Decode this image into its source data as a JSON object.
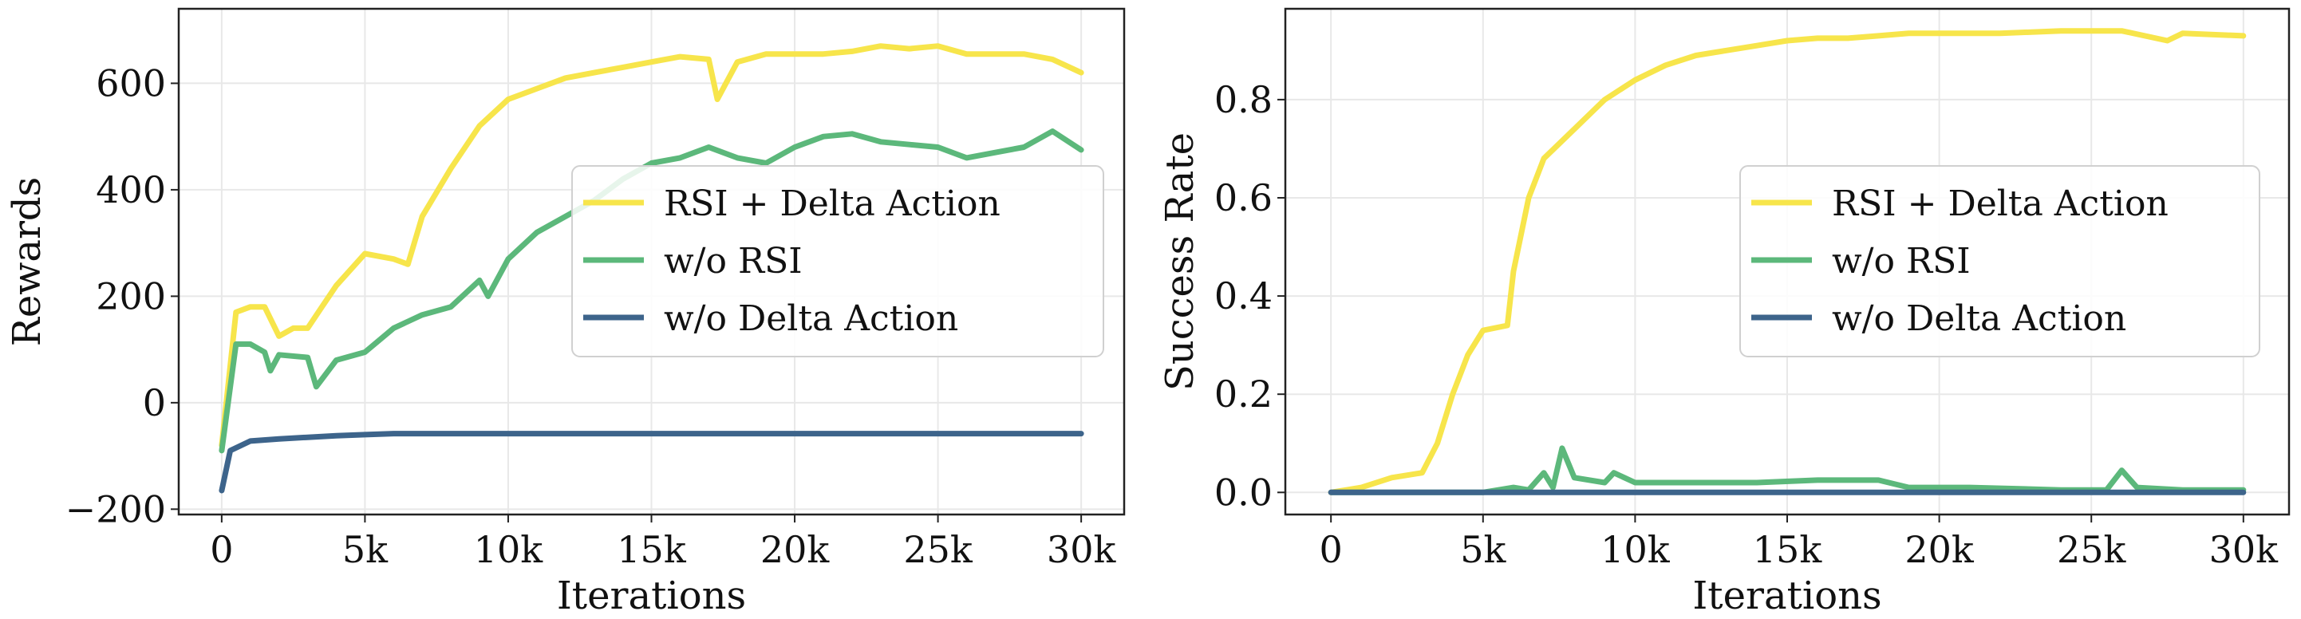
{
  "colors": {
    "rsi_delta": "#f7e54b",
    "wo_rsi": "#5cb87b",
    "wo_delta": "#3d648b"
  },
  "chart_data": [
    {
      "type": "line",
      "title": "",
      "xlabel": "Iterations",
      "ylabel": "Rewards",
      "xlim": [
        -1500,
        31500
      ],
      "ylim": [
        -210,
        740
      ],
      "xticks": [
        0,
        5000,
        10000,
        15000,
        20000,
        25000,
        30000
      ],
      "xtick_labels": [
        "0",
        "5k",
        "10k",
        "15k",
        "20k",
        "25k",
        "30k"
      ],
      "yticks": [
        -200,
        0,
        200,
        400,
        600
      ],
      "ytick_labels": [
        "−200",
        "0",
        "200",
        "400",
        "600"
      ],
      "grid": true,
      "legend_position": "center-right",
      "series": [
        {
          "name": "RSI + Delta Action",
          "color_key": "rsi_delta",
          "x": [
            0,
            500,
            1000,
            1500,
            2000,
            2500,
            3000,
            3500,
            4000,
            5000,
            6000,
            6500,
            7000,
            8000,
            9000,
            10000,
            11000,
            12000,
            13000,
            14000,
            15000,
            16000,
            17000,
            17300,
            18000,
            19000,
            20000,
            21000,
            22000,
            23000,
            24000,
            25000,
            26000,
            27000,
            28000,
            29000,
            30000
          ],
          "y": [
            -80,
            170,
            180,
            180,
            125,
            140,
            140,
            180,
            220,
            280,
            270,
            260,
            350,
            440,
            520,
            570,
            590,
            610,
            620,
            630,
            640,
            650,
            645,
            570,
            640,
            655,
            655,
            655,
            660,
            670,
            665,
            670,
            655,
            655,
            655,
            645,
            620
          ]
        },
        {
          "name": "w/o RSI",
          "color_key": "wo_rsi",
          "x": [
            0,
            500,
            1000,
            1500,
            1700,
            2000,
            3000,
            3300,
            4000,
            5000,
            6000,
            7000,
            8000,
            9000,
            9300,
            10000,
            11000,
            12000,
            13000,
            14000,
            15000,
            16000,
            17000,
            18000,
            19000,
            20000,
            21000,
            22000,
            23000,
            24000,
            25000,
            26000,
            27000,
            28000,
            29000,
            30000
          ],
          "y": [
            -90,
            110,
            110,
            95,
            60,
            90,
            85,
            30,
            80,
            95,
            140,
            165,
            180,
            230,
            200,
            270,
            320,
            350,
            380,
            420,
            450,
            460,
            480,
            460,
            450,
            480,
            500,
            505,
            490,
            485,
            480,
            460,
            470,
            480,
            510,
            475
          ]
        },
        {
          "name": "w/o Delta Action",
          "color_key": "wo_delta",
          "x": [
            0,
            300,
            1000,
            2000,
            3000,
            4000,
            5000,
            6000,
            10000,
            20000,
            30000
          ],
          "y": [
            -165,
            -90,
            -72,
            -68,
            -65,
            -62,
            -60,
            -58,
            -58,
            -58,
            -58
          ]
        }
      ]
    },
    {
      "type": "line",
      "title": "",
      "xlabel": "Iterations",
      "ylabel": "Success Rate",
      "xlim": [
        -1500,
        31500
      ],
      "ylim": [
        -0.045,
        0.985
      ],
      "xticks": [
        0,
        5000,
        10000,
        15000,
        20000,
        25000,
        30000
      ],
      "xtick_labels": [
        "0",
        "5k",
        "10k",
        "15k",
        "20k",
        "25k",
        "30k"
      ],
      "yticks": [
        0,
        0.2,
        0.4,
        0.6,
        0.8
      ],
      "ytick_labels": [
        "0.0",
        "0.2",
        "0.4",
        "0.6",
        "0.8"
      ],
      "grid": true,
      "legend_position": "center-right",
      "series": [
        {
          "name": "RSI + Delta Action",
          "color_key": "rsi_delta",
          "x": [
            0,
            1000,
            2000,
            3000,
            3500,
            4000,
            4500,
            5000,
            5800,
            6000,
            6500,
            7000,
            8000,
            9000,
            10000,
            11000,
            12000,
            13000,
            14000,
            15000,
            16000,
            17000,
            18000,
            19000,
            20000,
            22000,
            24000,
            26000,
            27500,
            28000,
            30000
          ],
          "y": [
            0,
            0.01,
            0.03,
            0.04,
            0.1,
            0.2,
            0.28,
            0.33,
            0.34,
            0.45,
            0.6,
            0.68,
            0.74,
            0.8,
            0.84,
            0.87,
            0.89,
            0.9,
            0.91,
            0.92,
            0.925,
            0.925,
            0.93,
            0.935,
            0.935,
            0.935,
            0.94,
            0.94,
            0.92,
            0.935,
            0.93
          ]
        },
        {
          "name": "w/o RSI",
          "color_key": "wo_rsi",
          "x": [
            0,
            5000,
            6000,
            6500,
            7000,
            7300,
            7600,
            8000,
            9000,
            9300,
            10000,
            12000,
            14000,
            16000,
            18000,
            19000,
            21000,
            24000,
            25500,
            26000,
            26500,
            28000,
            30000
          ],
          "y": [
            0,
            0,
            0.01,
            0.005,
            0.04,
            0.01,
            0.09,
            0.03,
            0.02,
            0.04,
            0.02,
            0.02,
            0.02,
            0.025,
            0.025,
            0.01,
            0.01,
            0.005,
            0.005,
            0.045,
            0.01,
            0.005,
            0.005
          ]
        },
        {
          "name": "w/o Delta Action",
          "color_key": "wo_delta",
          "x": [
            0,
            30000
          ],
          "y": [
            0,
            0
          ]
        }
      ]
    }
  ]
}
